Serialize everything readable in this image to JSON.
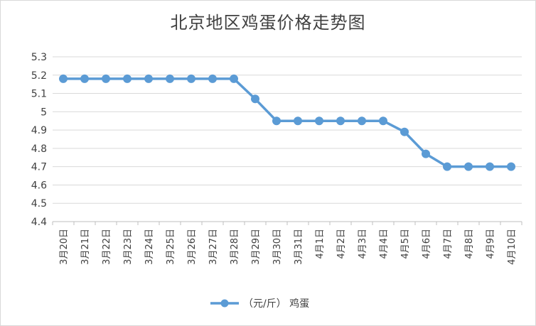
{
  "chart_data": {
    "type": "line",
    "title": "北京地区鸡蛋价格走势图",
    "xlabel": "",
    "ylabel": "",
    "ylim": [
      4.4,
      5.3
    ],
    "ytick_step": 0.1,
    "yticks": [
      "5.3",
      "5.2",
      "5.1",
      "5",
      "4.9",
      "4.8",
      "4.7",
      "4.6",
      "4.5",
      "4.4"
    ],
    "grid": true,
    "legend_position": "bottom",
    "categories": [
      "3月20日",
      "3月21日",
      "3月22日",
      "3月23日",
      "3月24日",
      "3月25日",
      "3月26日",
      "3月27日",
      "3月28日",
      "3月29日",
      "3月30日",
      "3月31日",
      "4月1日",
      "4月2日",
      "4月3日",
      "4月4日",
      "4月5日",
      "4月6日",
      "4月7日",
      "4月8日",
      "4月9日",
      "4月10日"
    ],
    "series": [
      {
        "name": "（元/斤） 鸡蛋",
        "color": "#5b9bd5",
        "values": [
          5.18,
          5.18,
          5.18,
          5.18,
          5.18,
          5.18,
          5.18,
          5.18,
          5.18,
          5.07,
          4.95,
          4.95,
          4.95,
          4.95,
          4.95,
          4.95,
          4.89,
          4.77,
          4.7,
          4.7,
          4.7,
          4.7
        ]
      }
    ]
  }
}
